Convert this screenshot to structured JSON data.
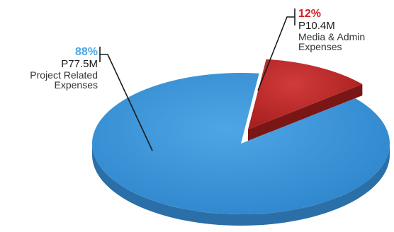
{
  "chart_data": {
    "type": "pie",
    "currency": "P",
    "slices": [
      {
        "percent_label": "88%",
        "value": 88,
        "amount_label": "P77.5M",
        "amount": 77.5,
        "label_lines": [
          "Project Related",
          "Expenses"
        ],
        "color": "#3a8fd3",
        "side_color": "#2a6fa8",
        "label_color": "#4aa6e6"
      },
      {
        "percent_label": "12%",
        "value": 12,
        "amount_label": "P10.4M",
        "amount": 10.4,
        "label_lines": [
          "Media & Admin",
          "Expenses"
        ],
        "color": "#c02a2a",
        "side_color": "#8e1d1d",
        "label_color": "#d32020"
      }
    ],
    "exploded": "Media & Admin Expenses",
    "style": "3d"
  }
}
